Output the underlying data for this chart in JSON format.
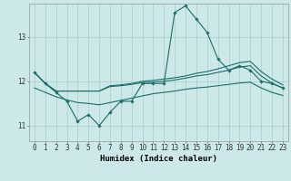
{
  "xlabel": "Humidex (Indice chaleur)",
  "ylabel": "",
  "bg_color": "#cce8e8",
  "grid_color": "#aacccc",
  "line_color": "#1a6e6a",
  "xlim": [
    -0.5,
    23.5
  ],
  "ylim": [
    10.65,
    13.75
  ],
  "yticks": [
    11,
    12,
    13
  ],
  "xticks": [
    0,
    1,
    2,
    3,
    4,
    5,
    6,
    7,
    8,
    9,
    10,
    11,
    12,
    13,
    14,
    15,
    16,
    17,
    18,
    19,
    20,
    21,
    22,
    23
  ],
  "series1_x": [
    0,
    1,
    2,
    3,
    4,
    5,
    6,
    7,
    8,
    9,
    10,
    11,
    12,
    13,
    14,
    15,
    16,
    17,
    18,
    19,
    20,
    21,
    22,
    23
  ],
  "series1_y": [
    12.2,
    11.95,
    11.75,
    11.55,
    11.1,
    11.25,
    11.0,
    11.3,
    11.55,
    11.55,
    11.95,
    11.95,
    11.95,
    13.55,
    13.7,
    13.4,
    13.1,
    12.5,
    12.25,
    12.35,
    12.25,
    12.0,
    11.95,
    11.85
  ],
  "series2_x": [
    0,
    1,
    2,
    3,
    4,
    5,
    6,
    7,
    8,
    9,
    10,
    11,
    12,
    13,
    14,
    15,
    16,
    17,
    18,
    19,
    20,
    21,
    22,
    23
  ],
  "series2_y": [
    12.2,
    11.95,
    11.78,
    11.78,
    11.78,
    11.78,
    11.78,
    11.9,
    11.92,
    11.95,
    12.0,
    12.02,
    12.05,
    12.08,
    12.12,
    12.18,
    12.22,
    12.28,
    12.35,
    12.42,
    12.45,
    12.22,
    12.05,
    11.92
  ],
  "series3_x": [
    0,
    1,
    2,
    3,
    4,
    5,
    6,
    7,
    8,
    9,
    10,
    11,
    12,
    13,
    14,
    15,
    16,
    17,
    18,
    19,
    20,
    21,
    22,
    23
  ],
  "series3_y": [
    12.2,
    11.95,
    11.78,
    11.78,
    11.78,
    11.78,
    11.78,
    11.88,
    11.9,
    11.93,
    11.97,
    11.98,
    12.0,
    12.03,
    12.07,
    12.12,
    12.15,
    12.2,
    12.25,
    12.32,
    12.35,
    12.12,
    11.96,
    11.85
  ],
  "series4_x": [
    0,
    1,
    2,
    3,
    4,
    5,
    6,
    7,
    8,
    9,
    10,
    11,
    12,
    13,
    14,
    15,
    16,
    17,
    18,
    19,
    20,
    21,
    22,
    23
  ],
  "series4_y": [
    11.85,
    11.75,
    11.65,
    11.58,
    11.52,
    11.5,
    11.47,
    11.52,
    11.57,
    11.62,
    11.67,
    11.72,
    11.75,
    11.78,
    11.82,
    11.85,
    11.87,
    11.9,
    11.93,
    11.96,
    11.98,
    11.85,
    11.75,
    11.68
  ]
}
